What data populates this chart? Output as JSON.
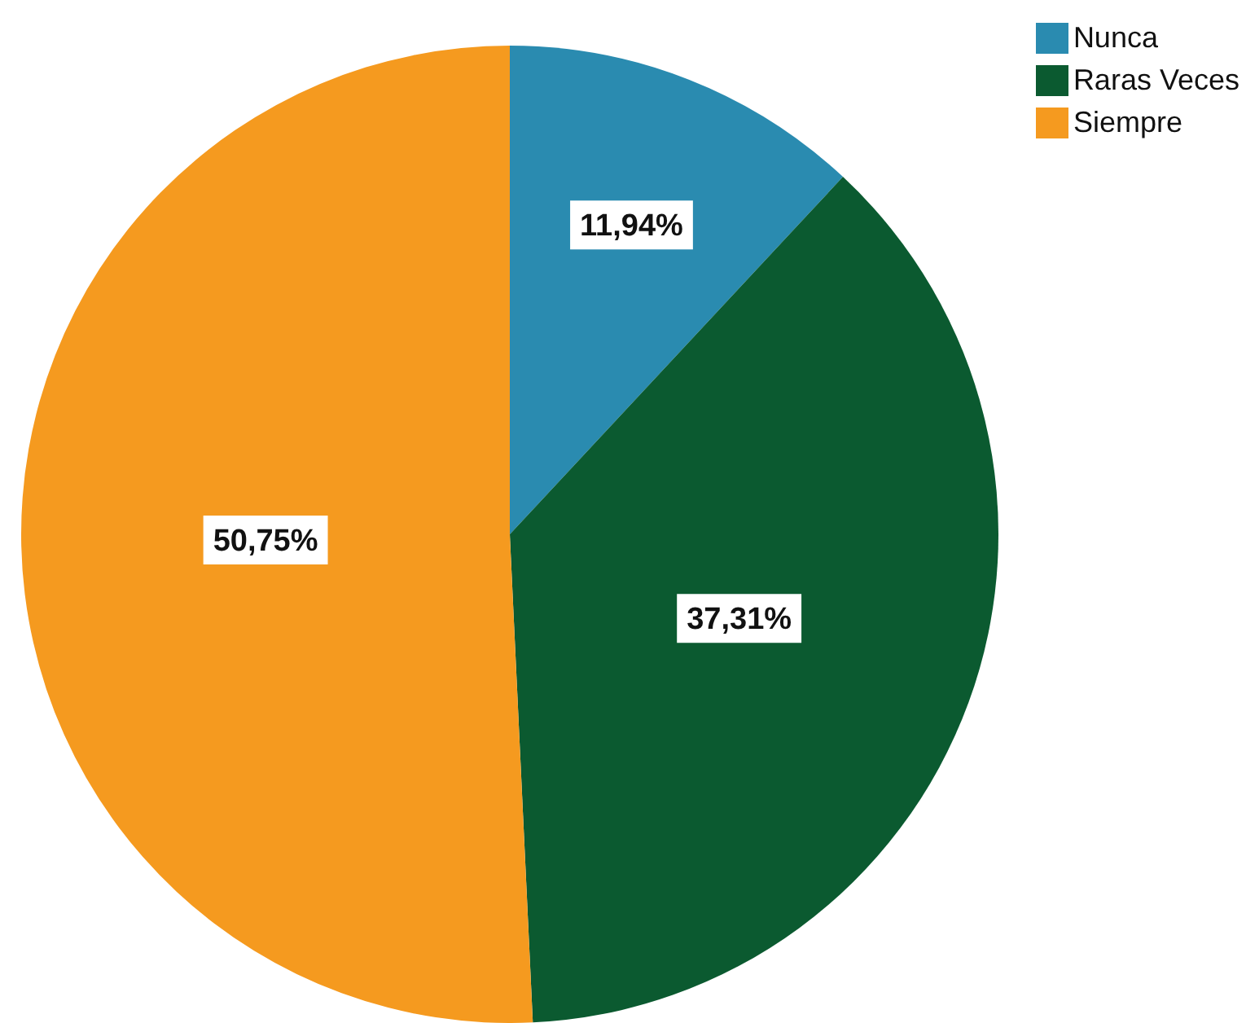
{
  "chart_data": {
    "type": "pie",
    "categories": [
      "Nunca",
      "Raras Veces",
      "Siempre"
    ],
    "values": [
      11.94,
      37.31,
      50.75
    ],
    "colors": [
      "#2a8bb0",
      "#0b5a30",
      "#f59a1f"
    ],
    "value_labels": [
      "11,94%",
      "37,31%",
      "50,75%"
    ],
    "legend": "top right"
  }
}
